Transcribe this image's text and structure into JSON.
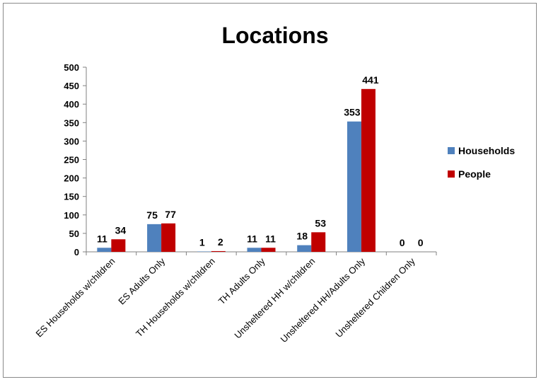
{
  "chart_data": {
    "type": "bar",
    "title": "Locations",
    "categories": [
      "ES Households w/children",
      "ES Adults Only",
      "TH Households w/children",
      "TH Adults Only",
      "Unsheltered  HH w/children",
      "Unsheltered  HH/Adults Only",
      "Unsheltered Children Only"
    ],
    "series": [
      {
        "name": "Households",
        "color": "#4f81bd",
        "values": [
          11,
          75,
          1,
          11,
          18,
          353,
          0
        ]
      },
      {
        "name": "People",
        "color": "#c00000",
        "values": [
          34,
          77,
          2,
          11,
          53,
          441,
          0
        ]
      }
    ],
    "ylim": [
      0,
      500
    ],
    "yticks": [
      0,
      50,
      100,
      150,
      200,
      250,
      300,
      350,
      400,
      450,
      500
    ],
    "xlabel": "",
    "ylabel": "",
    "grid": false,
    "legend": "right"
  }
}
